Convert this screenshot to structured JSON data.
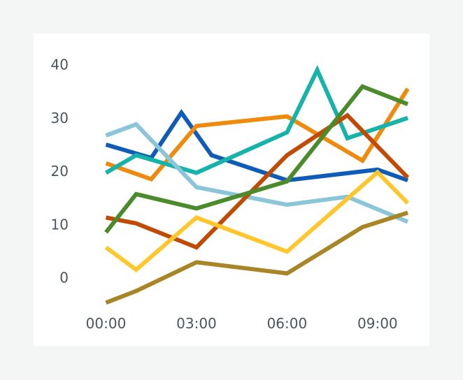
{
  "chart_data": {
    "type": "line",
    "x": [
      "00:00",
      "01:00",
      "02:00",
      "03:00",
      "04:00",
      "05:00",
      "06:00",
      "07:00",
      "08:00",
      "09:00",
      "10:00"
    ],
    "x_tick_labels": [
      "00:00",
      "03:00",
      "06:00",
      "09:00"
    ],
    "y_tick_labels": [
      "0",
      "10",
      "20",
      "30",
      "40"
    ],
    "ylim": [
      -5,
      40
    ],
    "grid": false,
    "legend": "none",
    "series": [
      {
        "color": "#0f5cb8",
        "points": [
          [
            "00:00",
            25
          ],
          [
            "01:30",
            22.5
          ],
          [
            "02:30",
            31
          ],
          [
            "03:30",
            23
          ],
          [
            "06:00",
            18.3
          ],
          [
            "09:00",
            20.3
          ],
          [
            "10:00",
            18.3
          ]
        ]
      },
      {
        "color": "#f08a0c",
        "points": [
          [
            "00:00",
            21.5
          ],
          [
            "01:30",
            18.5
          ],
          [
            "03:00",
            28.5
          ],
          [
            "06:00",
            30.3
          ],
          [
            "08:30",
            22
          ],
          [
            "10:00",
            35.5
          ]
        ]
      },
      {
        "color": "#16b3aa",
        "points": [
          [
            "00:00",
            19.7
          ],
          [
            "01:00",
            23
          ],
          [
            "03:00",
            19.7
          ],
          [
            "06:00",
            27.3
          ],
          [
            "07:00",
            39
          ],
          [
            "08:00",
            26.2
          ],
          [
            "10:00",
            30
          ]
        ]
      },
      {
        "color": "#8ac5da",
        "points": [
          [
            "00:00",
            26.7
          ],
          [
            "01:00",
            28.8
          ],
          [
            "03:00",
            17
          ],
          [
            "06:00",
            13.7
          ],
          [
            "08:00",
            15.2
          ],
          [
            "10:00",
            10.5
          ]
        ]
      },
      {
        "color": "#c14b05",
        "points": [
          [
            "00:00",
            11.3
          ],
          [
            "01:00",
            10.2
          ],
          [
            "03:00",
            5.7
          ],
          [
            "06:00",
            23
          ],
          [
            "08:00",
            30.5
          ],
          [
            "10:00",
            18.8
          ]
        ]
      },
      {
        "color": "#4b8b2c",
        "points": [
          [
            "00:00",
            8.5
          ],
          [
            "01:00",
            15.7
          ],
          [
            "03:00",
            13
          ],
          [
            "06:00",
            18.1
          ],
          [
            "08:30",
            35.9
          ],
          [
            "10:00",
            32.6
          ]
        ]
      },
      {
        "color": "#ffc72c",
        "points": [
          [
            "00:00",
            5.7
          ],
          [
            "01:00",
            1.5
          ],
          [
            "03:00",
            11.3
          ],
          [
            "06:00",
            4.9
          ],
          [
            "09:00",
            19.8
          ],
          [
            "10:00",
            14
          ]
        ]
      },
      {
        "color": "#a88626",
        "points": [
          [
            "00:00",
            -4.7
          ],
          [
            "01:00",
            -2.5
          ],
          [
            "03:00",
            2.9
          ],
          [
            "06:00",
            0.8
          ],
          [
            "08:30",
            9.5
          ],
          [
            "10:00",
            12.2
          ]
        ]
      }
    ]
  }
}
